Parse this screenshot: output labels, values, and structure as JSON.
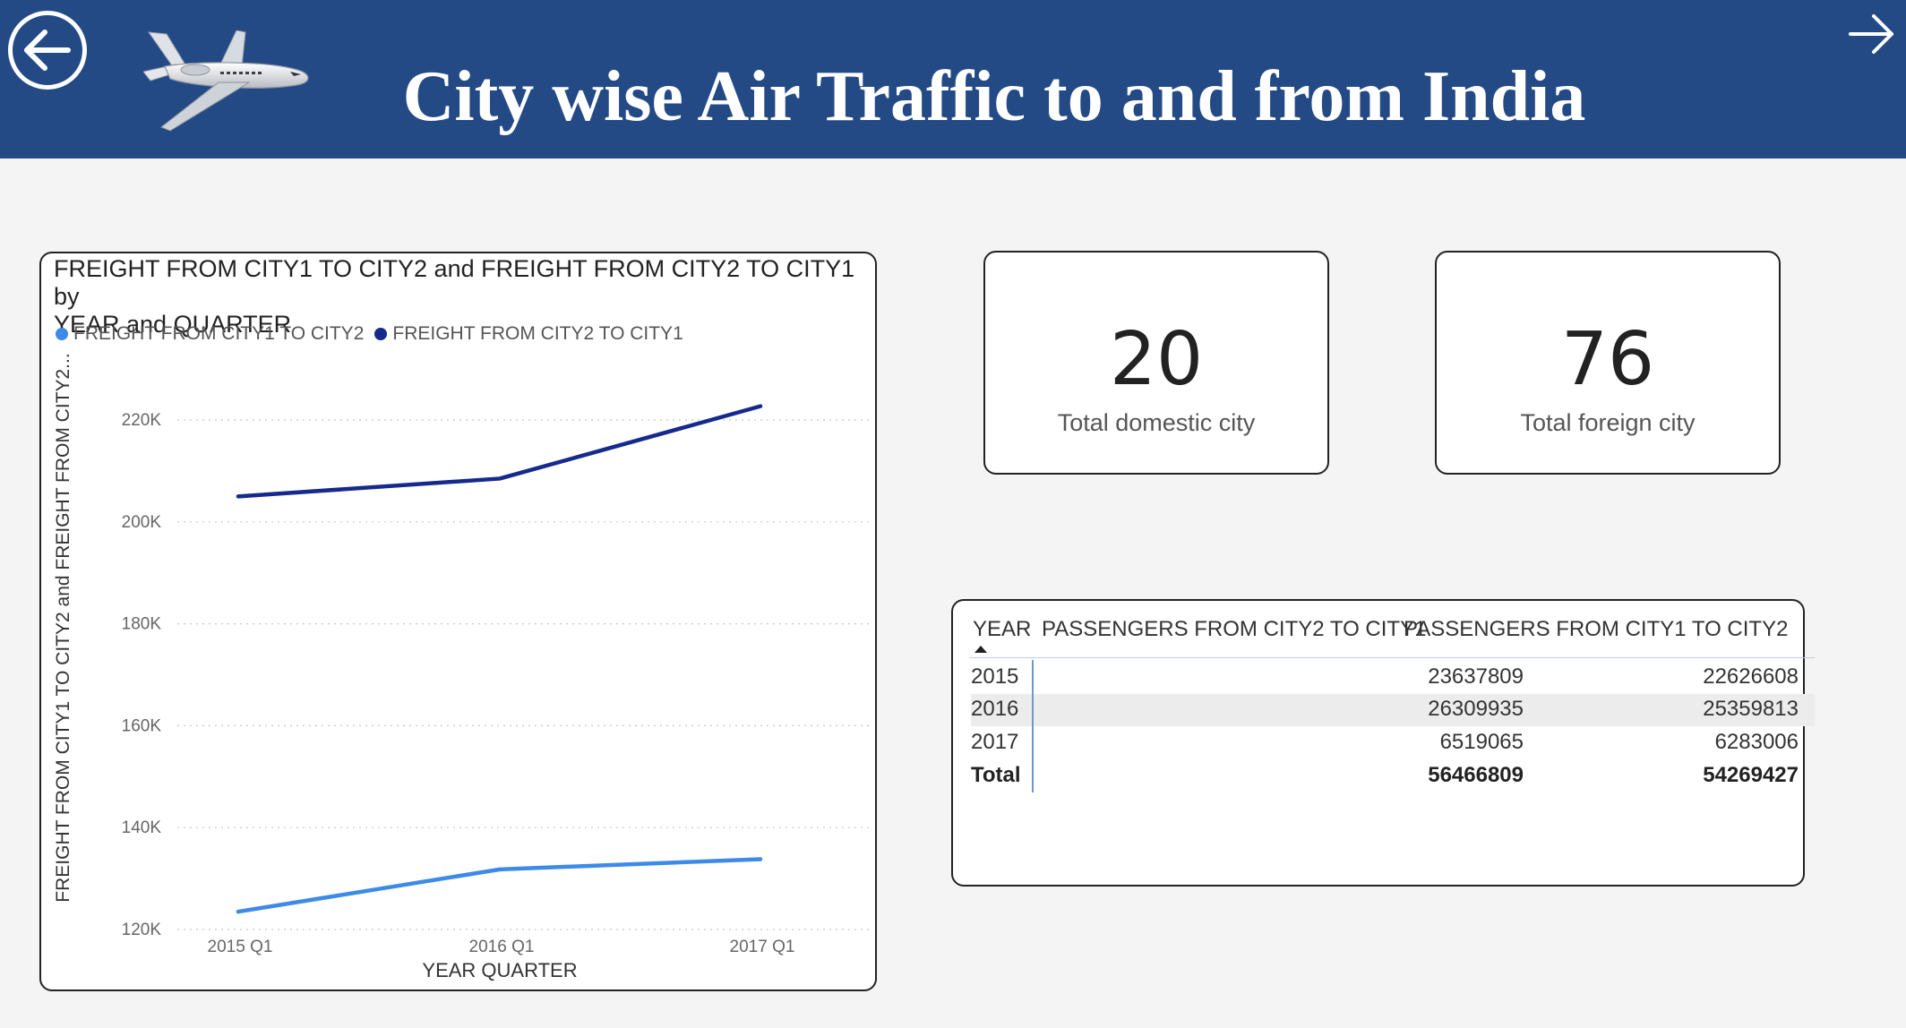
{
  "header": {
    "title": "City wise Air Traffic to and from India",
    "back_icon": "back-arrow-circle-icon",
    "forward_icon": "forward-arrow-icon",
    "logo_icon": "airplane-icon"
  },
  "freight_chart": {
    "title_line1": "FREIGHT FROM CITY1 TO CITY2 and FREIGHT FROM CITY2 TO CITY1 by",
    "title_line2": "YEAR and QUARTER",
    "legend": [
      {
        "label": "FREIGHT FROM CITY1 TO CITY2",
        "color": "#3d8ae8"
      },
      {
        "label": "FREIGHT FROM CITY2 TO CITY1",
        "color": "#152a8c"
      }
    ]
  },
  "chart_data": {
    "type": "line",
    "title": "FREIGHT FROM CITY1 TO CITY2 and FREIGHT FROM CITY2 TO CITY1 by YEAR and QUARTER",
    "xlabel": "YEAR QUARTER",
    "ylabel": "FREIGHT FROM CITY1 TO CITY2 and FREIGHT FROM CITY2...",
    "categories": [
      "2015 Q1",
      "2016 Q1",
      "2017 Q1"
    ],
    "ylim": [
      120000,
      222000
    ],
    "yticks": [
      120000,
      140000,
      160000,
      180000,
      200000,
      220000
    ],
    "ytick_labels": [
      "120K",
      "140K",
      "160K",
      "180K",
      "200K",
      "220K"
    ],
    "grid": true,
    "legend_position": "top-left",
    "series": [
      {
        "name": "FREIGHT FROM CITY1 TO CITY2",
        "color": "#3d8ae8",
        "values": [
          123500,
          131800,
          133800
        ]
      },
      {
        "name": "FREIGHT FROM CITY2 TO CITY1",
        "color": "#152a8c",
        "values": [
          205000,
          208500,
          222700
        ]
      }
    ]
  },
  "cards": [
    {
      "value": "20",
      "label": "Total domestic city"
    },
    {
      "value": "76",
      "label": "Total foreign city"
    }
  ],
  "passenger_table": {
    "columns": [
      "YEAR",
      "PASSENGERS FROM CITY2 TO CITY1",
      "PASSENGERS FROM CITY1 TO CITY2"
    ],
    "sort_icon": "sort-ascending-icon",
    "rows": [
      [
        "2015",
        "23637809",
        "22626608"
      ],
      [
        "2016",
        "26309935",
        "25359813"
      ],
      [
        "2017",
        "6519065",
        "6283006"
      ]
    ],
    "total": [
      "Total",
      "56466809",
      "54269427"
    ]
  }
}
